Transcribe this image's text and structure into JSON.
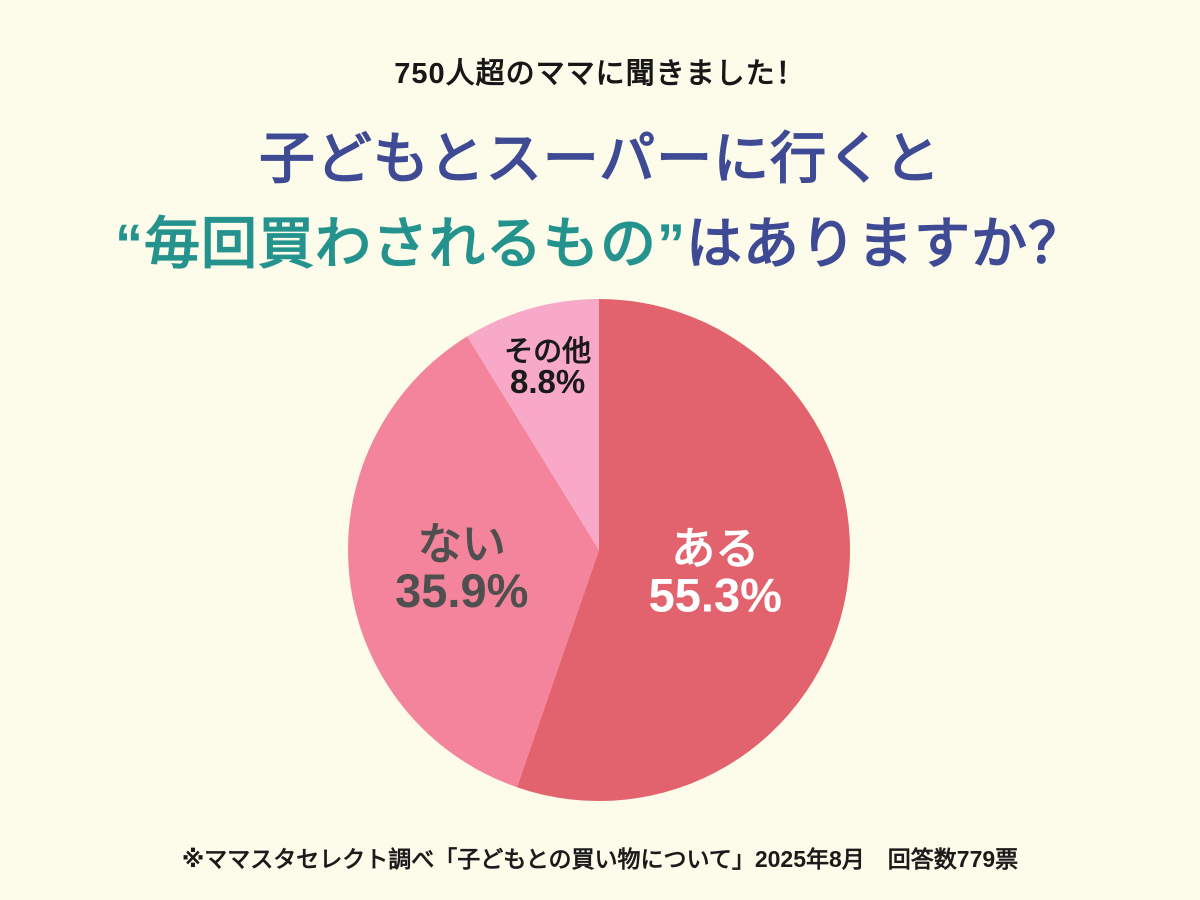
{
  "page": {
    "kicker": "750人超のママに聞きました！",
    "title_line1": "子どもとスーパーに行くと",
    "title_line2_highlight": "“毎回買わされるもの”",
    "title_line2_rest": "はありますか？",
    "footnote": "※ママスタセレクト調べ「子どもとの買い物について」2025年8月　回答数779票",
    "colors": {
      "background": "#FDFBEA",
      "kicker_text": "#171717",
      "title": "#3E4B94",
      "highlight": "#24938D",
      "footnote_text": "#1B1B1B"
    }
  },
  "chart_data": {
    "type": "pie",
    "title": "子どもとスーパーに行くと“毎回買わされるもの”はありますか？",
    "start_angle_deg": 0,
    "direction": "clockwise",
    "total": 100.0,
    "segments": [
      {
        "label": "ある",
        "value": 55.3,
        "color": "#E2636D",
        "text_color": "#FFFFFF",
        "label_r": 0.47
      },
      {
        "label": "ない",
        "value": 35.9,
        "color": "#F4849B",
        "text_color": "#4F4F4F",
        "label_r": 0.55
      },
      {
        "label": "その他",
        "value": 8.8,
        "color": "#F8A9C7",
        "text_color": "#1A1A1A",
        "label_r": 0.75
      }
    ],
    "legend_position": "none",
    "grid": false
  }
}
